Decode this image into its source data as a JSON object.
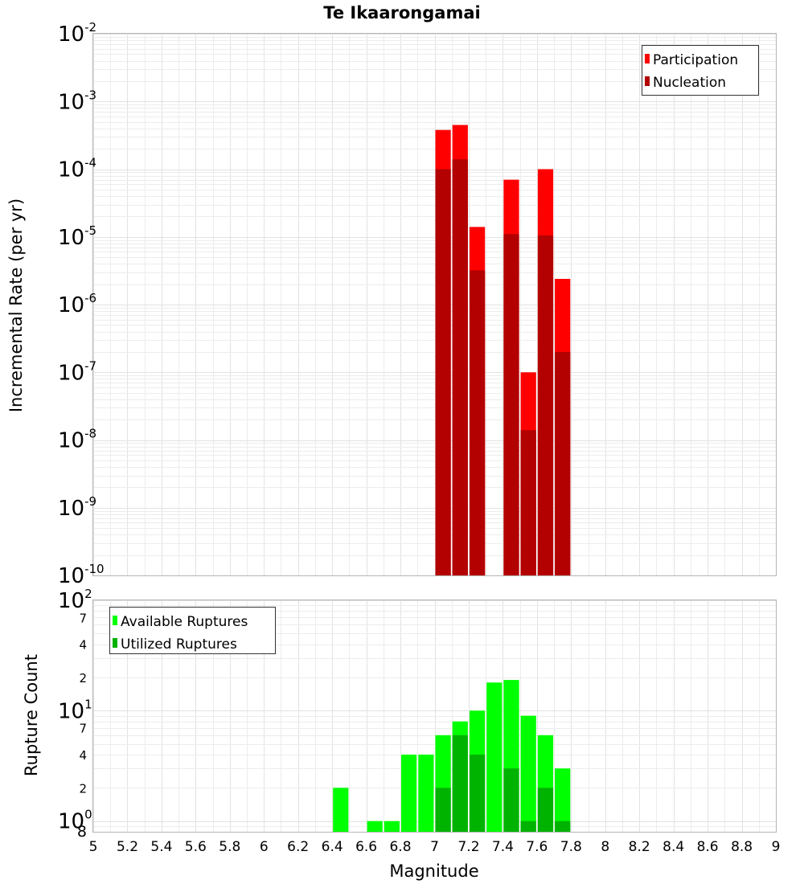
{
  "chart_data": [
    {
      "type": "bar",
      "title": "Te Ikaarongamai",
      "xlabel": "Magnitude",
      "ylabel": "Incremental Rate (per yr)",
      "yscale": "log",
      "xlim": [
        5,
        9
      ],
      "ylim": [
        1e-10,
        0.01
      ],
      "bin_width": 0.1,
      "x_ticks": [
        "5",
        "5.2",
        "5.4",
        "5.6",
        "5.8",
        "6",
        "6.2",
        "6.4",
        "6.6",
        "6.8",
        "7",
        "7.2",
        "7.4",
        "7.6",
        "7.8",
        "8",
        "8.2",
        "8.4",
        "8.6",
        "8.8",
        "9"
      ],
      "y_tick_labels": [
        {
          "base": "10",
          "exp": "-10"
        },
        {
          "base": "10",
          "exp": "-9"
        },
        {
          "base": "10",
          "exp": "-8"
        },
        {
          "base": "10",
          "exp": "-7"
        },
        {
          "base": "10",
          "exp": "-6"
        },
        {
          "base": "10",
          "exp": "-5"
        },
        {
          "base": "10",
          "exp": "-4"
        },
        {
          "base": "10",
          "exp": "-3"
        },
        {
          "base": "10",
          "exp": "-2"
        }
      ],
      "legend": {
        "position": "top-right"
      },
      "series": [
        {
          "name": "Participation",
          "color": "#ff0000",
          "x": [
            7.05,
            7.15,
            7.25,
            7.45,
            7.55,
            7.65,
            7.75
          ],
          "values": [
            0.00038,
            0.00045,
            1.4e-05,
            7e-05,
            1e-07,
            0.0001,
            2.4e-06
          ]
        },
        {
          "name": "Nucleation",
          "color": "#b30000",
          "x": [
            7.05,
            7.15,
            7.25,
            7.45,
            7.55,
            7.65,
            7.75
          ],
          "values": [
            0.0001,
            0.00014,
            3.2e-06,
            1.1e-05,
            1.4e-08,
            1.05e-05,
            2e-07
          ]
        }
      ]
    },
    {
      "type": "bar",
      "xlabel": "Magnitude",
      "ylabel": "Rupture Count",
      "yscale": "log",
      "xlim": [
        5,
        9
      ],
      "ylim": [
        0.8,
        100
      ],
      "bin_width": 0.1,
      "x_ticks": [
        "5",
        "5.2",
        "5.4",
        "5.6",
        "5.8",
        "6",
        "6.2",
        "6.4",
        "6.6",
        "6.8",
        "7",
        "7.2",
        "7.4",
        "7.6",
        "7.8",
        "8",
        "8.2",
        "8.4",
        "8.6",
        "8.8",
        "9"
      ],
      "y_tick_labels": {
        "major": [
          {
            "base": "10",
            "exp": "0"
          },
          {
            "base": "10",
            "exp": "1"
          },
          {
            "base": "10",
            "exp": "2"
          }
        ],
        "minor": [
          "8",
          "2",
          "4",
          "7",
          "2",
          "4",
          "7"
        ]
      },
      "legend": {
        "position": "top-left"
      },
      "series": [
        {
          "name": "Available Ruptures",
          "color": "#00ff00",
          "x": [
            6.45,
            6.65,
            6.75,
            6.85,
            6.95,
            7.05,
            7.15,
            7.25,
            7.35,
            7.45,
            7.55,
            7.65,
            7.75
          ],
          "values": [
            2,
            1,
            1,
            4,
            4,
            6,
            8,
            10,
            18,
            19,
            9,
            6,
            3
          ]
        },
        {
          "name": "Utilized Ruptures",
          "color": "#00b300",
          "x": [
            7.05,
            7.15,
            7.25,
            7.45,
            7.55,
            7.65,
            7.75
          ],
          "values": [
            2,
            6,
            4,
            3,
            1,
            2,
            1
          ]
        }
      ]
    }
  ]
}
